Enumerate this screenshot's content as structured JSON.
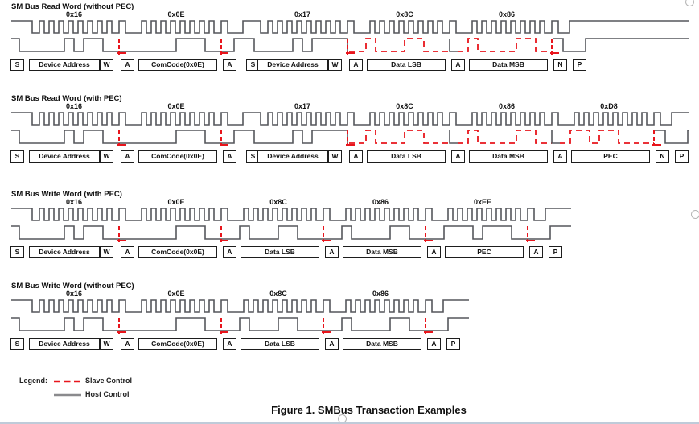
{
  "colors": {
    "host_line": "#55565b",
    "slave_line": "#e8151c",
    "box_border": "#1d1d1d",
    "text": "#000000",
    "artifact": "#b5b5b5",
    "bottom_rule": "#bfcbd9"
  },
  "legend": {
    "label": "Legend:",
    "slave_label": "Slave Control",
    "host_label": "Host Control"
  },
  "caption": "Figure 1. SMBus Transaction Examples",
  "sections": [
    {
      "title": "SM Bus Read Word (without PEC)",
      "kind": "read",
      "start": "S",
      "stop": "P",
      "bytes": [
        {
          "hex": "0x16",
          "bits": "00010110",
          "source": "host",
          "box": "Device Address",
          "box2": "W",
          "ack": "A",
          "ack_source": "slave"
        },
        {
          "hex": "0x0E",
          "bits": "00001110",
          "source": "host",
          "box": "ComCode(0x0E)",
          "ack": "A",
          "ack_source": "slave"
        },
        {
          "hex": "0x17",
          "bits": "00010111",
          "source": "host",
          "box": "Device Address",
          "box2": "W",
          "ack": "A",
          "ack_source": "slave",
          "repeated_start": true
        },
        {
          "hex": "0x8C",
          "bits": "10001100",
          "source": "slave",
          "box": "Data LSB",
          "ack": "A",
          "ack_source": "host"
        },
        {
          "hex": "0x86",
          "bits": "10000110",
          "source": "slave",
          "box": "Data MSB",
          "ack": "N",
          "ack_source": "none"
        }
      ]
    },
    {
      "title": "SM Bus Read Word (with PEC)",
      "kind": "read",
      "start": "S",
      "stop": "P",
      "bytes": [
        {
          "hex": "0x16",
          "bits": "00010110",
          "source": "host",
          "box": "Device Address",
          "box2": "W",
          "ack": "A",
          "ack_source": "slave"
        },
        {
          "hex": "0x0E",
          "bits": "00001110",
          "source": "host",
          "box": "ComCode(0x0E)",
          "ack": "A",
          "ack_source": "slave"
        },
        {
          "hex": "0x17",
          "bits": "00010111",
          "source": "host",
          "box": "Device Address",
          "box2": "W",
          "ack": "A",
          "ack_source": "slave",
          "repeated_start": true
        },
        {
          "hex": "0x8C",
          "bits": "10001100",
          "source": "slave",
          "box": "Data LSB",
          "ack": "A",
          "ack_source": "host"
        },
        {
          "hex": "0x86",
          "bits": "10000110",
          "source": "slave",
          "box": "Data MSB",
          "ack": "A",
          "ack_source": "host"
        },
        {
          "hex": "0xD8",
          "bits": "11011000",
          "source": "slave",
          "box": "PEC",
          "ack": "N",
          "ack_source": "none"
        }
      ]
    },
    {
      "title": "SM Bus Write Word (with PEC)",
      "kind": "write",
      "start": "S",
      "stop": "P",
      "bytes": [
        {
          "hex": "0x16",
          "bits": "00010110",
          "source": "host",
          "box": "Device Address",
          "box2": "W",
          "ack": "A",
          "ack_source": "slave"
        },
        {
          "hex": "0x0E",
          "bits": "00001110",
          "source": "host",
          "box": "ComCode(0x0E)",
          "ack": "A",
          "ack_source": "slave"
        },
        {
          "hex": "0x8C",
          "bits": "10001100",
          "source": "host",
          "box": "Data LSB",
          "ack": "A",
          "ack_source": "slave"
        },
        {
          "hex": "0x86",
          "bits": "10000110",
          "source": "host",
          "box": "Data MSB",
          "ack": "A",
          "ack_source": "slave"
        },
        {
          "hex": "0xEE",
          "bits": "11101110",
          "source": "host",
          "box": "PEC",
          "ack": "A",
          "ack_source": "slave"
        }
      ]
    },
    {
      "title": "SM Bus Write Word (without PEC)",
      "kind": "write",
      "start": "S",
      "stop": "P",
      "bytes": [
        {
          "hex": "0x16",
          "bits": "00010110",
          "source": "host",
          "box": "Device Address",
          "box2": "W",
          "ack": "A",
          "ack_source": "slave"
        },
        {
          "hex": "0x0E",
          "bits": "00001110",
          "source": "host",
          "box": "ComCode(0x0E)",
          "ack": "A",
          "ack_source": "slave"
        },
        {
          "hex": "0x8C",
          "bits": "10001100",
          "source": "host",
          "box": "Data LSB",
          "ack": "A",
          "ack_source": "slave"
        },
        {
          "hex": "0x86",
          "bits": "10000110",
          "source": "host",
          "box": "Data MSB",
          "ack": "A",
          "ack_source": "slave"
        }
      ]
    }
  ]
}
